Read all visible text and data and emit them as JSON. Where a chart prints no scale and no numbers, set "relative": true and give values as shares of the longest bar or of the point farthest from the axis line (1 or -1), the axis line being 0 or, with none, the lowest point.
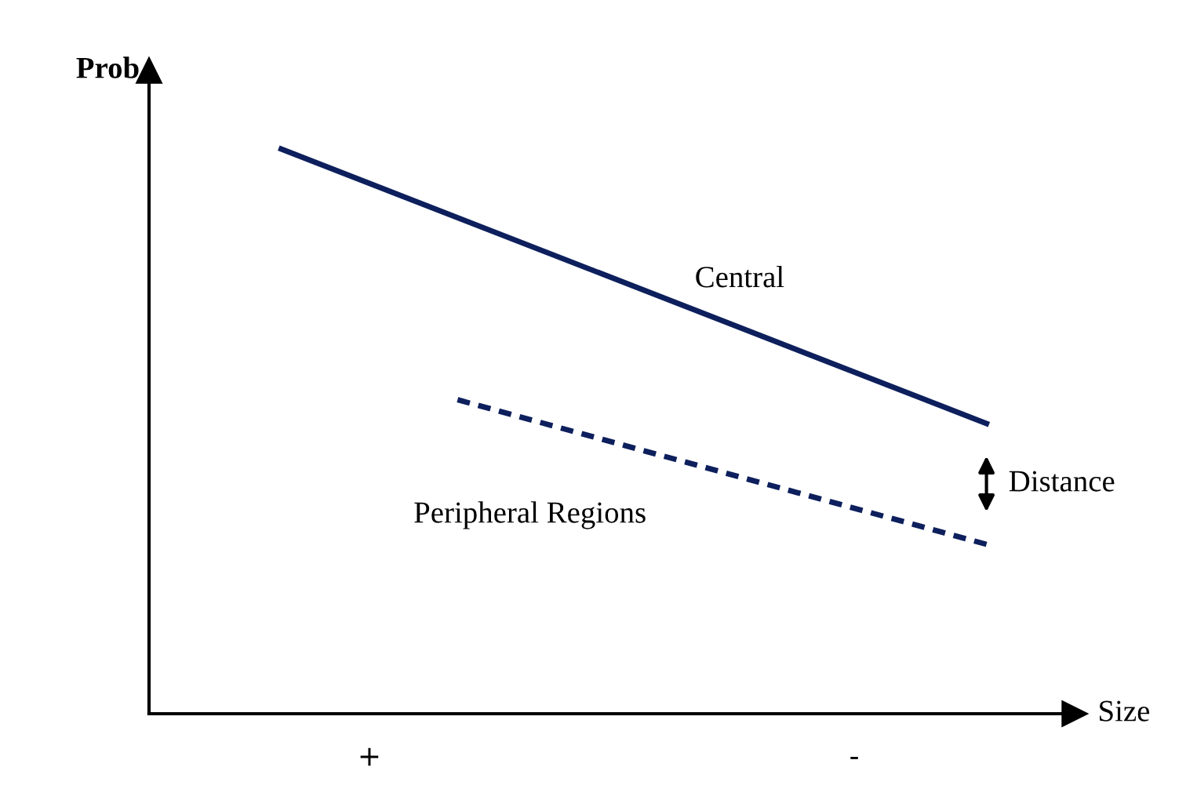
{
  "chart_data": {
    "type": "line",
    "relative": true,
    "ylabel": "Prob",
    "categories": [
      null,
      null,
      "+",
      null,
      null,
      null,
      null,
      null,
      null,
      null,
      null,
      null,
      null,
      "-",
      null,
      null,
      null
    ],
    "series": [
      {
        "name": "Central",
        "color": "#0d1f5c",
        "values": [
          1,
          null,
          null,
          null,
          null,
          null,
          null,
          null,
          null,
          null,
          null,
          null,
          null,
          null,
          null,
          null,
          0.514
        ],
        "line_style": "solid"
      },
      {
        "name": "Peripheral Regions",
        "color": "#0d1f5c",
        "values": [
          null,
          null,
          null,
          null,
          0.556,
          null,
          null,
          null,
          null,
          null,
          null,
          null,
          null,
          null,
          null,
          null,
          0.3
        ],
        "line_style": "dashed"
      }
    ],
    "annotations": [
      "Distance",
      "Size"
    ],
    "grid": false,
    "legend": false,
    "marker": "none"
  }
}
